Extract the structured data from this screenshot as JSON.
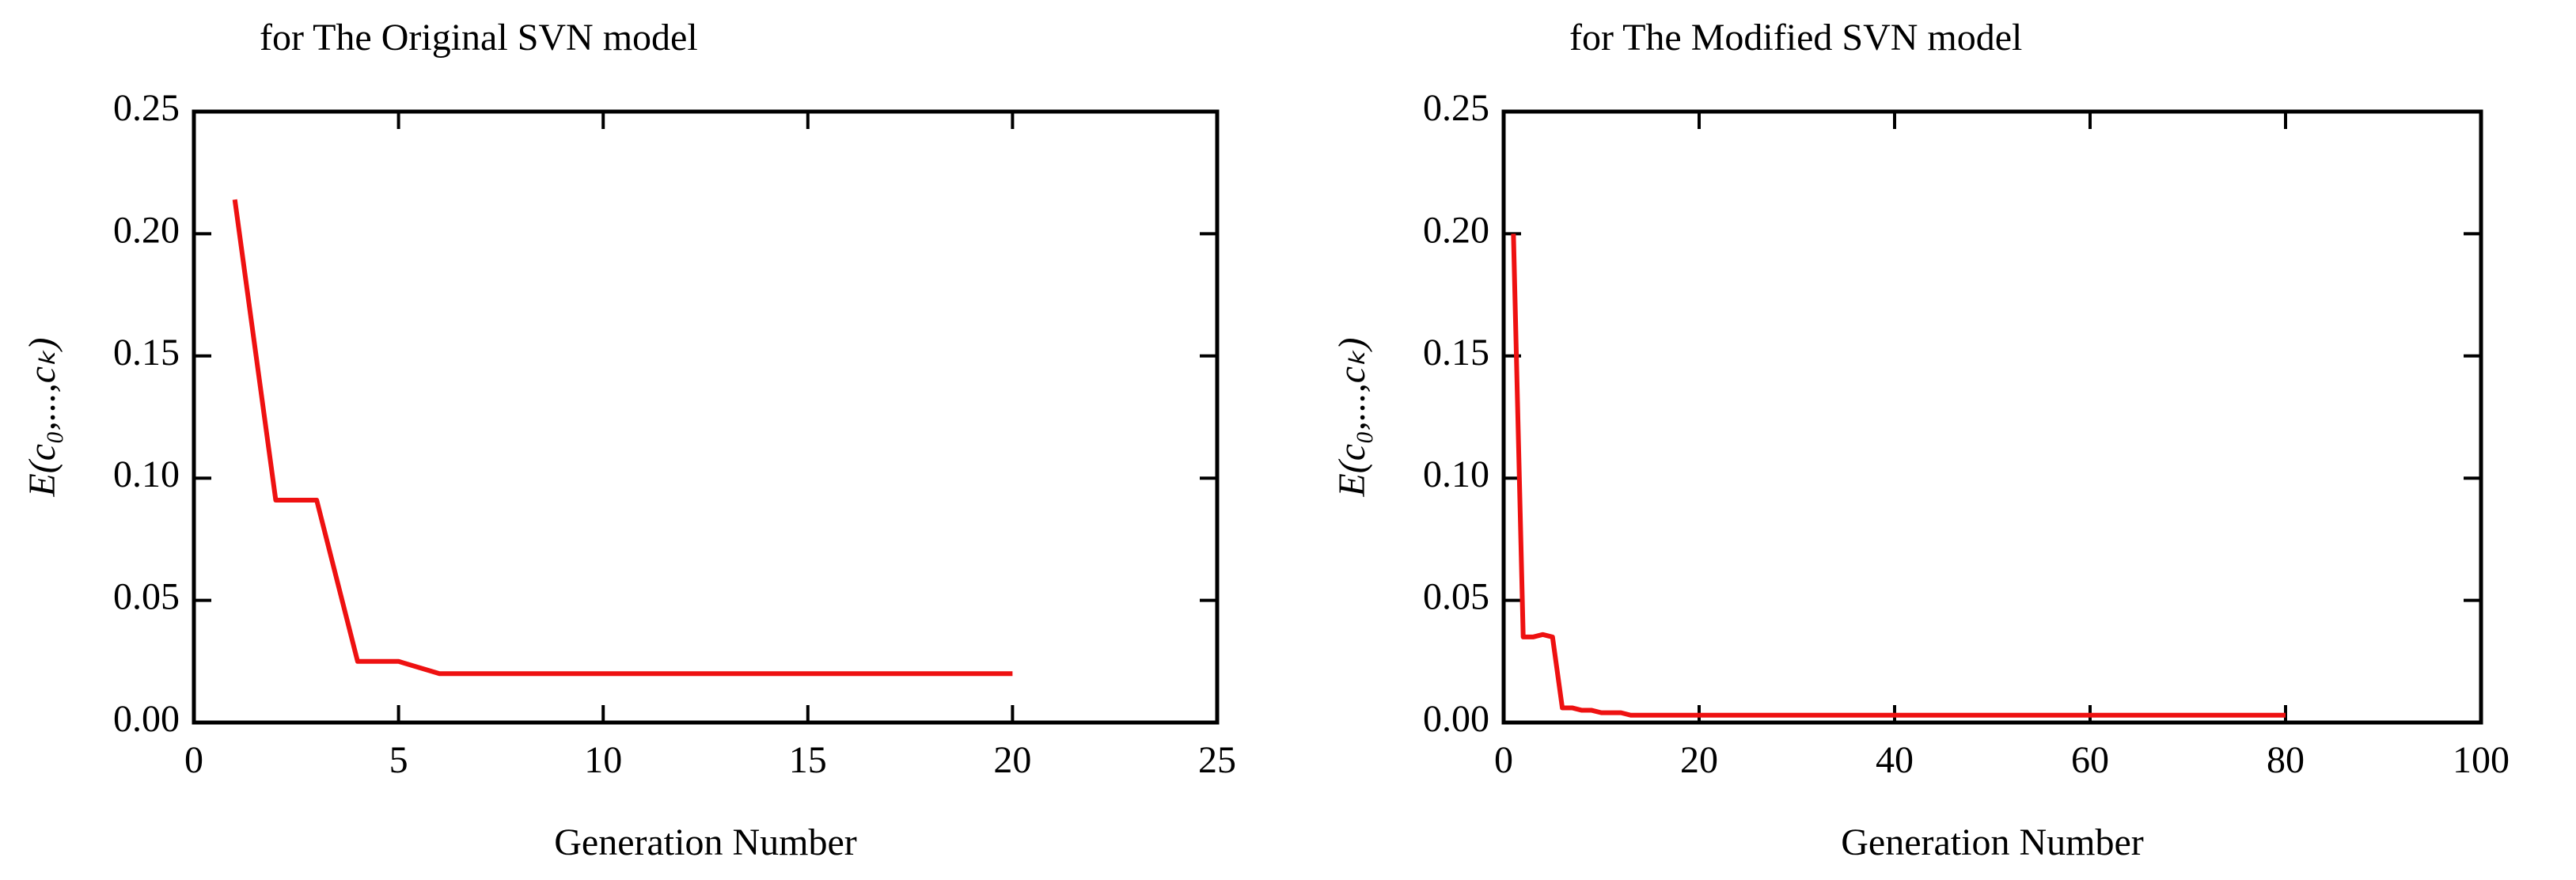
{
  "chart_data": [
    {
      "type": "line",
      "title": "for The Original SVN model",
      "xlabel": "Generation  Number",
      "ylabel": "E(c₀,...,cₖ)",
      "x": [
        1,
        2,
        3,
        4,
        5,
        6,
        20
      ],
      "values": [
        0.214,
        0.091,
        0.091,
        0.025,
        0.025,
        0.02,
        0.02
      ],
      "color": "#ee1111",
      "xlim": [
        0,
        25
      ],
      "xticks": [
        0,
        5,
        10,
        15,
        20,
        25
      ],
      "ylim": [
        0,
        0.25
      ],
      "yticks": [
        {
          "value": 0,
          "label": "0.00"
        },
        {
          "value": 0.05,
          "label": "0.05"
        },
        {
          "value": 0.1,
          "label": "0.10"
        },
        {
          "value": 0.15,
          "label": "0.15"
        },
        {
          "value": 0.2,
          "label": "0.20"
        },
        {
          "value": 0.25,
          "label": "0.25"
        }
      ]
    },
    {
      "type": "line",
      "title": "for The Modified SVN model",
      "xlabel": "Generation  Number",
      "ylabel": "E(c₀,...,cₖ)",
      "x": [
        1,
        2,
        3,
        4,
        5,
        6,
        7,
        8,
        9,
        10,
        12,
        13,
        80
      ],
      "values": [
        0.2,
        0.035,
        0.035,
        0.036,
        0.035,
        0.006,
        0.006,
        0.005,
        0.005,
        0.004,
        0.004,
        0.003,
        0.003
      ],
      "color": "#ee1111",
      "xlim": [
        0,
        100
      ],
      "xticks": [
        0,
        20,
        40,
        60,
        80,
        100
      ],
      "ylim": [
        0,
        0.25
      ],
      "yticks": [
        {
          "value": 0,
          "label": "0.00"
        },
        {
          "value": 0.05,
          "label": "0.05"
        },
        {
          "value": 0.1,
          "label": "0.10"
        },
        {
          "value": 0.15,
          "label": "0.15"
        },
        {
          "value": 0.2,
          "label": "0.20"
        },
        {
          "value": 0.25,
          "label": "0.25"
        }
      ]
    }
  ]
}
